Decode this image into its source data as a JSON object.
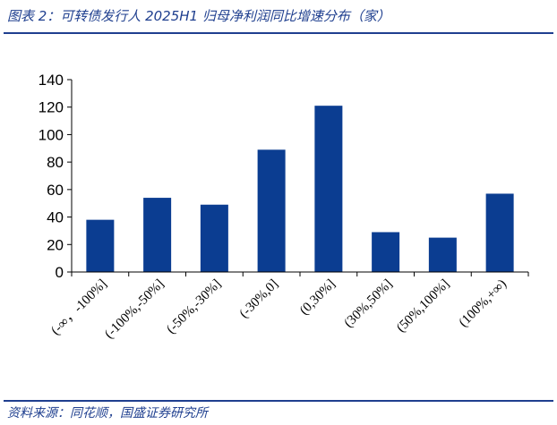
{
  "header": {
    "title": "图表 2：可转债发行人 2025H1 归母净利润同比增速分布（家）"
  },
  "footer": {
    "source": "资料来源：同花顺，国盛证券研究所"
  },
  "colors": {
    "bar": "#0b3d91",
    "text_accent": "#1f3f8f",
    "axis": "#000000"
  },
  "chart_data": {
    "type": "bar",
    "categories": [
      "(-∞，-100%]",
      "(-100%,-50%]",
      "(-50%,-30%]",
      "(-30%,0]",
      "(0,30%]",
      "(30%,50%]",
      "(50%,100%]",
      "(100%,+∞)"
    ],
    "values": [
      38,
      54,
      49,
      89,
      121,
      29,
      25,
      57
    ],
    "ylim": [
      0,
      140
    ],
    "yticks": [
      0,
      20,
      40,
      60,
      80,
      100,
      120,
      140
    ],
    "yticks_labels": [
      "0",
      "20",
      "40",
      "60",
      "80",
      "100",
      "120",
      "140"
    ],
    "grid": false,
    "legend": "none"
  }
}
